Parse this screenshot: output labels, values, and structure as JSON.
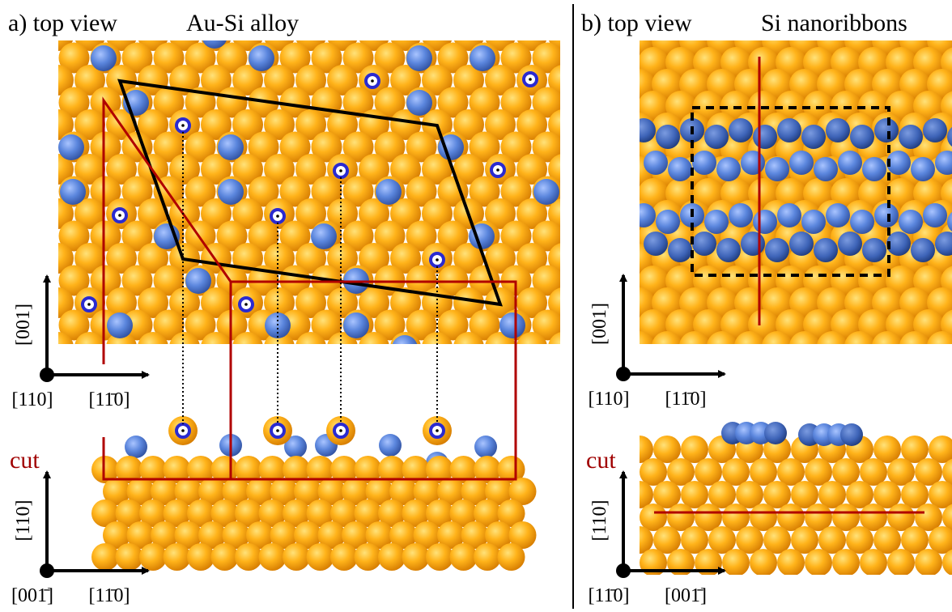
{
  "panels": [
    {
      "label": "a) top view",
      "title": "Au-Si alloy",
      "cut": "cut",
      "top_axes": {
        "vertical": "[001]",
        "origin": "[110]",
        "horizontal": "[11̄0]"
      },
      "side_axes": {
        "vertical": "[110]",
        "origin": "[001̄]",
        "horizontal": "[11̄0]"
      }
    },
    {
      "label": "b) top view",
      "title": "Si nanoribbons",
      "cut": "cut",
      "top_axes": {
        "vertical": "[001]",
        "origin": "[110]",
        "horizontal": "[11̄0]"
      },
      "side_axes": {
        "vertical": "[110]",
        "origin": "[11̄0]",
        "horizontal": "[001̄]"
      }
    }
  ]
}
